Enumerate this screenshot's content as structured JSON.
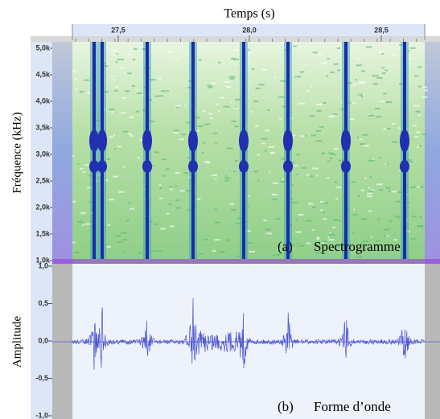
{
  "header": {
    "title": "Temps (s)"
  },
  "time_ruler": {
    "ticks": [
      "27,5",
      "28,0",
      "28,5"
    ]
  },
  "spectrogram": {
    "y_label": "Fréquence (kHz)",
    "ticks": [
      "5,0k",
      "4,5k",
      "4,0k",
      "3,5k",
      "3,0k",
      "2,5k",
      "2,0k",
      "1,5k",
      "1,0k"
    ],
    "caption_letter": "(a)",
    "caption": "Spectrogramme"
  },
  "waveform": {
    "y_label": "Amplitude",
    "ticks": [
      "1,0",
      "0,5",
      "0,0",
      "-0,5",
      "-1,0"
    ],
    "caption_letter": "(b)",
    "caption": "Forme d’onde"
  }
}
